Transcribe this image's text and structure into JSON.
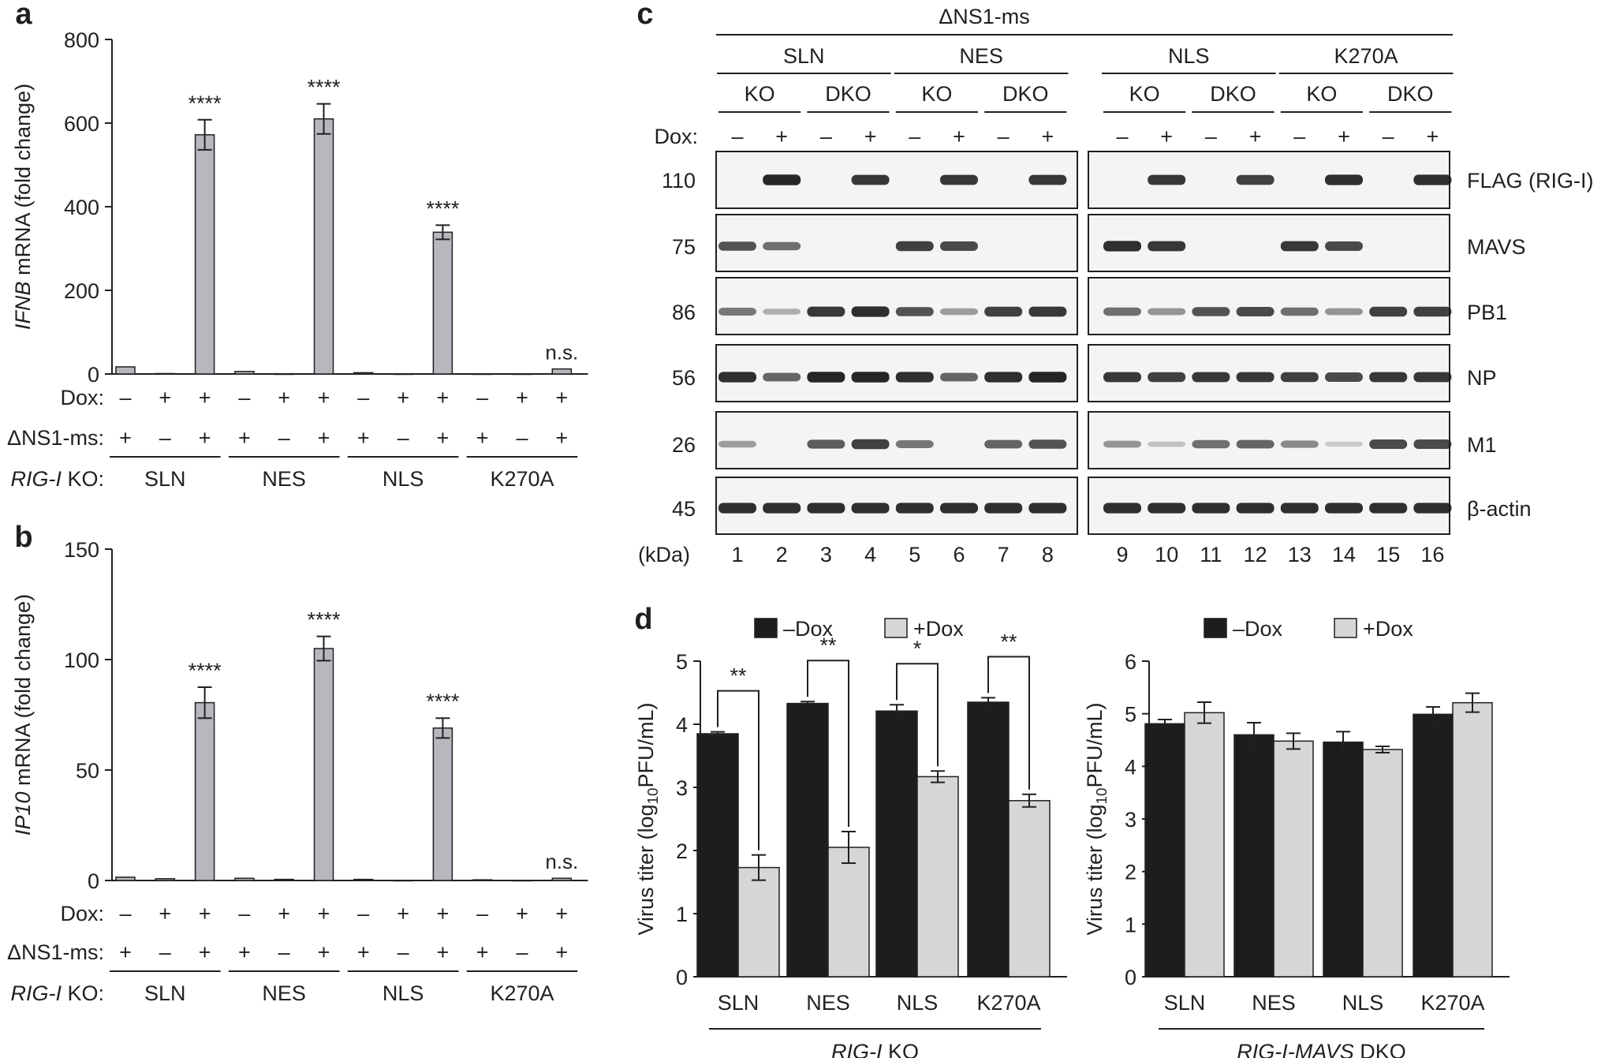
{
  "panels": {
    "a": {
      "letter": "a"
    },
    "b": {
      "letter": "b"
    },
    "c": {
      "letter": "c"
    },
    "d": {
      "letter": "d"
    }
  },
  "colors": {
    "bar_gray": "#b7b7bd",
    "dox_minus": "#1d1d1d",
    "dox_plus": "#d5d6d6",
    "axis": "#231f20"
  },
  "chart_data": [
    {
      "id": "a",
      "type": "bar",
      "ylabel_italic": "IFNB",
      "ylabel_rest": " mRNA (fold change)",
      "ylim": [
        0,
        800
      ],
      "yticks": [
        "0",
        "200",
        "400",
        "600",
        "800"
      ],
      "values": [
        17,
        1,
        572,
        6,
        0,
        610,
        3,
        0,
        339,
        0,
        0,
        12
      ],
      "errors": [
        0,
        0,
        36,
        0,
        0,
        36,
        0,
        0,
        17,
        0,
        0,
        0
      ],
      "annotations": [
        "",
        "",
        "****",
        "",
        "",
        "****",
        "",
        "",
        "****",
        "",
        "",
        "n.s."
      ],
      "row_labels": {
        "dox": "Dox:",
        "ns1": "ΔNS1-ms:",
        "ko_italic": "RIG-I",
        "ko_rest": " KO:"
      },
      "dox": [
        "–",
        "+",
        "+",
        "–",
        "+",
        "+",
        "–",
        "+",
        "+",
        "–",
        "+",
        "+"
      ],
      "ns1": [
        "+",
        "–",
        "+",
        "+",
        "–",
        "+",
        "+",
        "–",
        "+",
        "+",
        "–",
        "+"
      ],
      "groups": [
        "SLN",
        "NES",
        "NLS",
        "K270A"
      ]
    },
    {
      "id": "b",
      "type": "bar",
      "ylabel_italic": "IP10",
      "ylabel_rest": " mRNA (fold change)",
      "ylim": [
        0,
        150
      ],
      "yticks": [
        "0",
        "50",
        "100",
        "150"
      ],
      "values": [
        1.5,
        0.8,
        80.5,
        1.0,
        0.5,
        105,
        0.5,
        0,
        69,
        0.3,
        0,
        1.0
      ],
      "errors": [
        0,
        0,
        7,
        0,
        0,
        5.5,
        0,
        0,
        4.5,
        0,
        0,
        0
      ],
      "annotations": [
        "",
        "",
        "****",
        "",
        "",
        "****",
        "",
        "",
        "****",
        "",
        "",
        "n.s."
      ],
      "row_labels": {
        "dox": "Dox:",
        "ns1": "ΔNS1-ms:",
        "ko_italic": "RIG-I",
        "ko_rest": " KO:"
      },
      "dox": [
        "–",
        "+",
        "+",
        "–",
        "+",
        "+",
        "–",
        "+",
        "+",
        "–",
        "+",
        "+"
      ],
      "ns1": [
        "+",
        "–",
        "+",
        "+",
        "–",
        "+",
        "+",
        "–",
        "+",
        "+",
        "–",
        "+"
      ],
      "groups": [
        "SLN",
        "NES",
        "NLS",
        "K270A"
      ]
    },
    {
      "id": "c",
      "type": "table",
      "title": "ΔNS1-ms",
      "groups": [
        "SLN",
        "NES",
        "NLS",
        "K270A"
      ],
      "subgroups": [
        "KO",
        "DKO",
        "KO",
        "DKO",
        "KO",
        "DKO",
        "KO",
        "DKO"
      ],
      "dox_label": "Dox:",
      "dox": [
        "–",
        "+",
        "–",
        "+",
        "–",
        "+",
        "–",
        "+",
        "–",
        "+",
        "–",
        "+",
        "–",
        "+",
        "–",
        "+"
      ],
      "kda_label": "(kDa)",
      "lanes": [
        "1",
        "2",
        "3",
        "4",
        "5",
        "6",
        "7",
        "8",
        "9",
        "10",
        "11",
        "12",
        "13",
        "14",
        "15",
        "16"
      ],
      "blots": [
        {
          "kda": "110",
          "protein": "FLAG (RIG-I)",
          "intensity": [
            0,
            0.95,
            0,
            0.85,
            0,
            0.85,
            0,
            0.85,
            0,
            0.85,
            0,
            0.8,
            0,
            0.9,
            0,
            0.9
          ]
        },
        {
          "kda": "75",
          "protein": "MAVS",
          "intensity": [
            0.7,
            0.55,
            0,
            0,
            0.8,
            0.75,
            0,
            0,
            0.9,
            0.85,
            0,
            0,
            0.85,
            0.75,
            0,
            0
          ]
        },
        {
          "kda": "86",
          "protein": "PB1",
          "intensity": [
            0.5,
            0.2,
            0.85,
            0.9,
            0.7,
            0.3,
            0.8,
            0.85,
            0.55,
            0.35,
            0.7,
            0.75,
            0.55,
            0.35,
            0.8,
            0.8
          ]
        },
        {
          "kda": "56",
          "protein": "NP",
          "intensity": [
            0.9,
            0.6,
            0.95,
            0.95,
            0.9,
            0.6,
            0.9,
            0.95,
            0.85,
            0.8,
            0.85,
            0.85,
            0.8,
            0.75,
            0.85,
            0.85
          ]
        },
        {
          "kda": "26",
          "protein": "M1",
          "intensity": [
            0.3,
            0,
            0.65,
            0.8,
            0.5,
            0,
            0.6,
            0.7,
            0.35,
            0.1,
            0.55,
            0.6,
            0.4,
            0.05,
            0.75,
            0.75
          ]
        },
        {
          "kda": "45",
          "protein": "β-actin",
          "intensity": [
            0.9,
            0.9,
            0.9,
            0.9,
            0.9,
            0.9,
            0.9,
            0.9,
            0.9,
            0.9,
            0.9,
            0.9,
            0.9,
            0.9,
            0.9,
            0.9
          ]
        }
      ]
    },
    {
      "id": "d-left",
      "type": "bar",
      "legend": [
        "–Dox",
        "+Dox"
      ],
      "ylabel": "Virus titer (log10PFU/mL)",
      "ylabel_a": "Virus titer (log",
      "ylabel_sub": "10",
      "ylabel_b": "PFU/mL)",
      "ylim": [
        0,
        5
      ],
      "yticks": [
        "0",
        "1",
        "2",
        "3",
        "4",
        "5"
      ],
      "categories": [
        "SLN",
        "NES",
        "NLS",
        "K270A"
      ],
      "series": [
        {
          "name": "–Dox",
          "values": [
            3.85,
            4.33,
            4.21,
            4.35
          ],
          "errors": [
            0.03,
            0.03,
            0.1,
            0.07
          ]
        },
        {
          "name": "+Dox",
          "values": [
            1.73,
            2.05,
            3.17,
            2.79
          ],
          "errors": [
            0.2,
            0.25,
            0.09,
            0.1
          ]
        }
      ],
      "significance": [
        "**",
        "**",
        "*",
        "**"
      ],
      "group_label_italic": "RIG-I",
      "group_label_rest": " KO"
    },
    {
      "id": "d-right",
      "type": "bar",
      "legend": [
        "–Dox",
        "+Dox"
      ],
      "ylabel": "Virus titer (log10PFU/mL)",
      "ylabel_a": "Virus titer (log",
      "ylabel_sub": "10",
      "ylabel_b": "PFU/mL)",
      "ylim": [
        0,
        6
      ],
      "yticks": [
        "0",
        "1",
        "2",
        "3",
        "4",
        "5",
        "6"
      ],
      "categories": [
        "SLN",
        "NES",
        "NLS",
        "K270A"
      ],
      "series": [
        {
          "name": "–Dox",
          "values": [
            4.81,
            4.6,
            4.46,
            4.99
          ],
          "errors": [
            0.08,
            0.23,
            0.2,
            0.14
          ]
        },
        {
          "name": "+Dox",
          "values": [
            5.02,
            4.48,
            4.32,
            5.21
          ],
          "errors": [
            0.2,
            0.15,
            0.06,
            0.18
          ]
        }
      ],
      "group_label_italic": "RIG-I-MAVS",
      "group_label_rest": " DKO"
    }
  ]
}
